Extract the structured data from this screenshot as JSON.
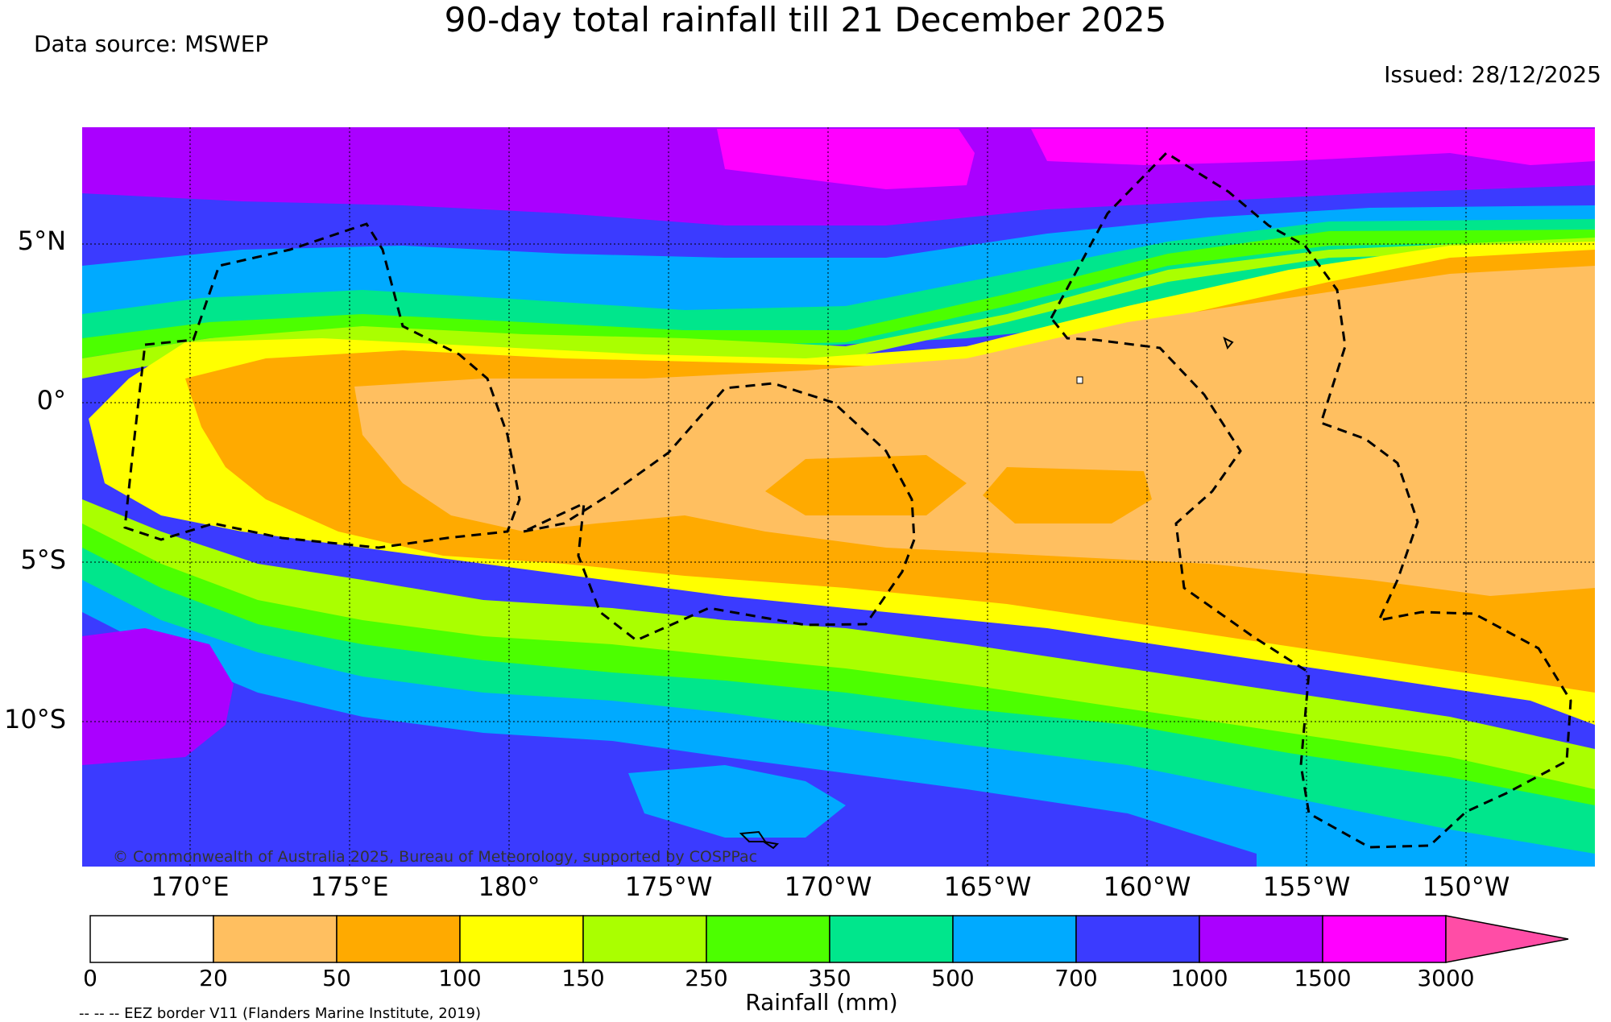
{
  "title": "90-day total rainfall till 21 December 2025",
  "data_source": "Data source: MSWEP",
  "issued": "Issued: 28/12/2025",
  "copyright": "© Commonwealth of Australia 2025, Bureau of Meteorology, supported by COSPPac",
  "eez_note": "-- -- -- EEZ border V11 (Flanders Marine Institute, 2019)",
  "lat_labels": [
    "5°N",
    "0°",
    "5°S",
    "10°S"
  ],
  "lon_labels": [
    "170°E",
    "175°E",
    "180°",
    "175°W",
    "170°W",
    "165°W",
    "160°W",
    "155°W",
    "150°W"
  ],
  "colorbar": {
    "title": "Rainfall (mm)",
    "ticks": [
      "0",
      "20",
      "50",
      "100",
      "150",
      "250",
      "350",
      "500",
      "700",
      "1000",
      "1500",
      "3000"
    ],
    "colors": [
      "#ffffff",
      "#ffbf60",
      "#ffaa00",
      "#ffff00",
      "#aaff00",
      "#4cff00",
      "#00e68c",
      "#00aaff",
      "#3b3bff",
      "#aa00ff",
      "#ff00ff",
      "#ff4da6"
    ]
  },
  "colors": {
    "eez_line": "#000000",
    "land": "#000000",
    "grid": "#000000"
  }
}
